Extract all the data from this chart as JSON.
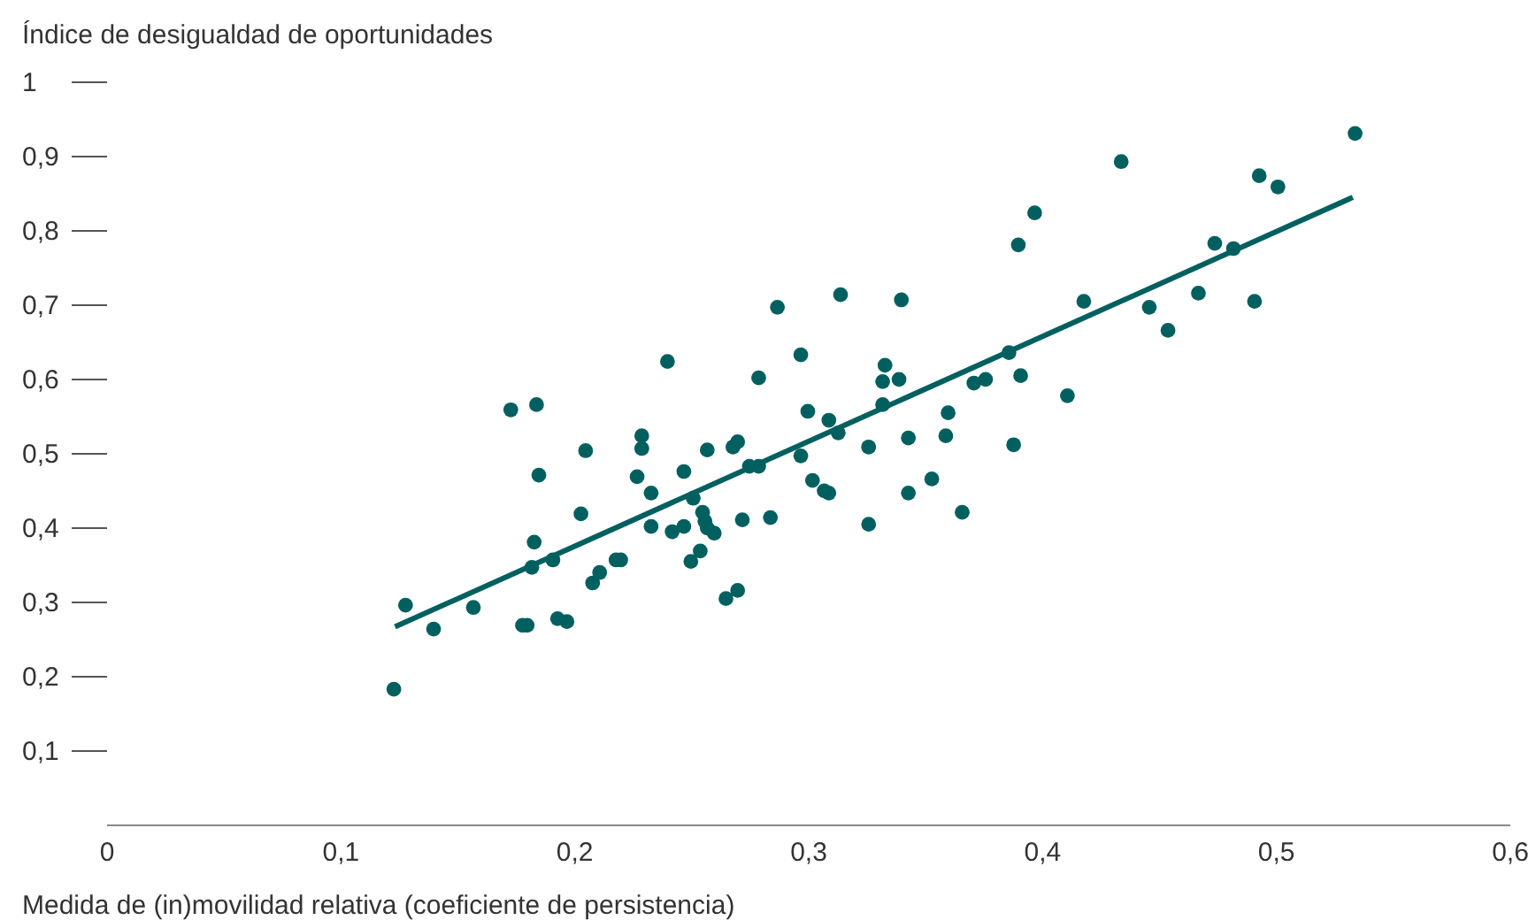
{
  "chart_data": {
    "type": "scatter",
    "xlabel": "Medida de (in)movilidad relativa (coeficiente de persistencia)",
    "ylabel": "Índice de desigualdad de oportunidades",
    "xlim": [
      0,
      0.6
    ],
    "ylim": [
      0,
      1
    ],
    "xticks": [
      0,
      {
        "value": 0.1,
        "label": "0,1"
      },
      {
        "value": 0.2,
        "label": "0,2"
      },
      {
        "value": 0.3,
        "label": "0,3"
      },
      {
        "value": 0.4,
        "label": "0,4"
      },
      {
        "value": 0.5,
        "label": "0,5"
      },
      {
        "value": 0.6,
        "label": "0,6"
      }
    ],
    "yticks": [
      {
        "value": 0.1,
        "label": "0,1"
      },
      {
        "value": 0.2,
        "label": "0,2"
      },
      {
        "value": 0.3,
        "label": "0,3"
      },
      {
        "value": 0.4,
        "label": "0,4"
      },
      {
        "value": 0.5,
        "label": "0,5"
      },
      {
        "value": 0.6,
        "label": "0,6"
      },
      {
        "value": 0.7,
        "label": "0,7"
      },
      {
        "value": 0.8,
        "label": "0,8"
      },
      {
        "value": 0.9,
        "label": "0,9"
      },
      1
    ],
    "grid": false,
    "series": [
      {
        "type": "scatter",
        "marker": "circle",
        "color": "#00605f",
        "x": [
          0.123,
          0.128,
          0.14,
          0.157,
          0.173,
          0.184,
          0.205,
          0.185,
          0.203,
          0.183,
          0.182,
          0.191,
          0.178,
          0.18,
          0.193,
          0.197,
          0.211,
          0.208,
          0.229,
          0.229,
          0.227,
          0.233,
          0.247,
          0.251,
          0.257,
          0.268,
          0.27,
          0.275,
          0.279,
          0.297,
          0.302,
          0.307,
          0.309,
          0.3,
          0.309,
          0.313,
          0.326,
          0.343,
          0.359,
          0.36,
          0.353,
          0.343,
          0.366,
          0.326,
          0.284,
          0.272,
          0.255,
          0.256,
          0.257,
          0.26,
          0.254,
          0.25,
          0.242,
          0.247,
          0.233,
          0.218,
          0.22,
          0.265,
          0.27,
          0.287,
          0.24,
          0.297,
          0.279,
          0.534,
          0.434,
          0.493,
          0.501,
          0.397,
          0.39,
          0.474,
          0.482,
          0.314,
          0.34,
          0.418,
          0.446,
          0.467,
          0.491,
          0.454,
          0.386,
          0.333,
          0.332,
          0.339,
          0.371,
          0.376,
          0.391,
          0.411,
          0.332,
          0.388
        ],
        "values": [
          0.182,
          0.295,
          0.263,
          0.292,
          0.558,
          0.565,
          0.503,
          0.47,
          0.418,
          0.38,
          0.346,
          0.356,
          0.268,
          0.268,
          0.277,
          0.273,
          0.339,
          0.325,
          0.523,
          0.506,
          0.468,
          0.446,
          0.475,
          0.439,
          0.504,
          0.508,
          0.515,
          0.482,
          0.482,
          0.496,
          0.463,
          0.449,
          0.446,
          0.556,
          0.544,
          0.527,
          0.508,
          0.52,
          0.523,
          0.554,
          0.465,
          0.446,
          0.42,
          0.404,
          0.413,
          0.41,
          0.42,
          0.408,
          0.399,
          0.392,
          0.368,
          0.354,
          0.394,
          0.401,
          0.401,
          0.356,
          0.356,
          0.304,
          0.315,
          0.696,
          0.623,
          0.632,
          0.601,
          0.93,
          0.892,
          0.873,
          0.858,
          0.823,
          0.78,
          0.782,
          0.775,
          0.713,
          0.706,
          0.704,
          0.696,
          0.715,
          0.704,
          0.665,
          0.635,
          0.618,
          0.596,
          0.599,
          0.594,
          0.599,
          0.604,
          0.577,
          0.565,
          0.511
        ]
      },
      {
        "type": "line",
        "color": "#00605f",
        "x": [
          0.1235,
          0.533
        ],
        "values": [
          0.266,
          0.844
        ]
      }
    ]
  }
}
